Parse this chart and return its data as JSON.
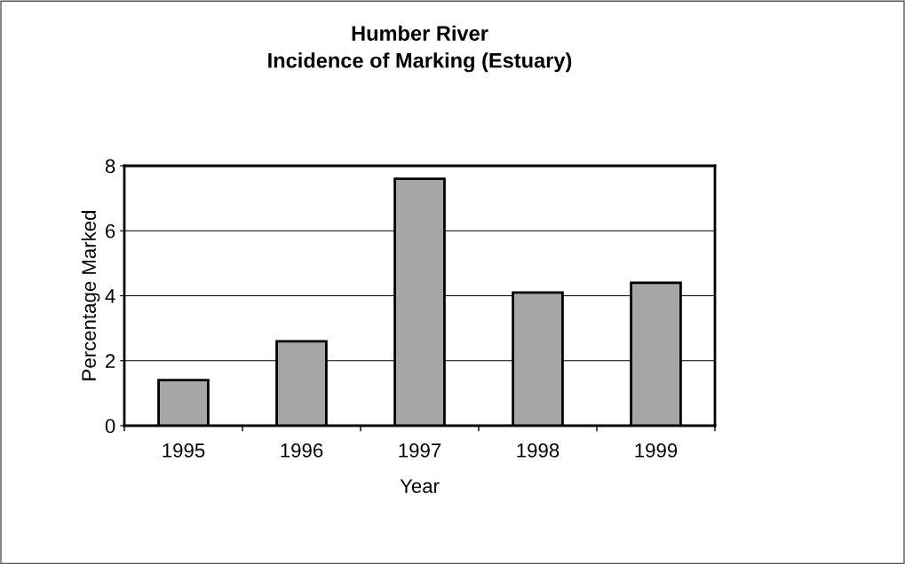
{
  "chart_data": {
    "type": "bar",
    "title": "Humber River\nIncidence of Marking (Estuary)",
    "xlabel": "Year",
    "ylabel": "Percentage Marked",
    "categories": [
      "1995",
      "1996",
      "1997",
      "1998",
      "1999"
    ],
    "values": [
      1.4,
      2.6,
      7.6,
      4.1,
      4.4
    ],
    "color": "#a6a6a6",
    "ylim": [
      0,
      8
    ],
    "yticks": [
      0,
      2,
      4,
      6,
      8
    ],
    "grid": "y"
  }
}
